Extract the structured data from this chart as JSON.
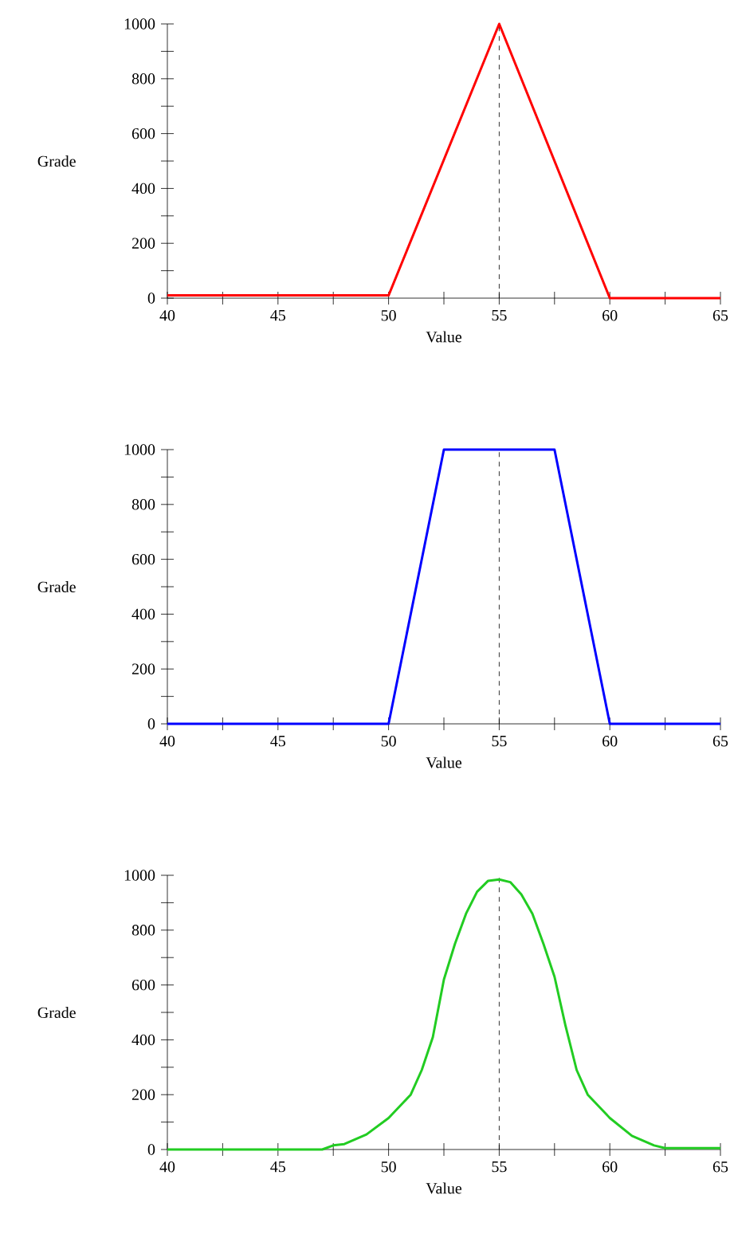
{
  "chart_data": [
    {
      "type": "line",
      "xlabel": "Value",
      "ylabel": "Grade",
      "xlim": [
        40,
        65
      ],
      "ylim": [
        0,
        1000
      ],
      "xticks": [
        40,
        {
          "value": 42.5,
          "label": null
        },
        45,
        {
          "value": 47.5,
          "label": null
        },
        50,
        {
          "value": 52.5,
          "label": null
        },
        55,
        {
          "value": 57.5,
          "label": null
        },
        60,
        {
          "value": 62.5,
          "label": null
        },
        65
      ],
      "yticks": [
        0,
        {
          "value": 100,
          "label": null
        },
        200,
        {
          "value": 300,
          "label": null
        },
        400,
        {
          "value": 500,
          "label": null
        },
        600,
        {
          "value": 700,
          "label": null
        },
        800,
        {
          "value": 900,
          "label": null
        },
        1000
      ],
      "ref_lines": [
        {
          "axis": "x",
          "value": 55,
          "color": "#000000",
          "line_style": "dashed"
        }
      ],
      "series": [
        {
          "color": "#ff0000",
          "x": [
            40,
            50,
            55,
            60,
            65
          ],
          "values": [
            10,
            10,
            1000,
            0,
            0
          ]
        }
      ]
    },
    {
      "type": "line",
      "xlabel": "Value",
      "ylabel": "Grade",
      "xlim": [
        40,
        65
      ],
      "ylim": [
        0,
        1000
      ],
      "xticks": [
        40,
        {
          "value": 42.5,
          "label": null
        },
        45,
        {
          "value": 47.5,
          "label": null
        },
        50,
        {
          "value": 52.5,
          "label": null
        },
        55,
        {
          "value": 57.5,
          "label": null
        },
        60,
        {
          "value": 62.5,
          "label": null
        },
        65
      ],
      "yticks": [
        0,
        {
          "value": 100,
          "label": null
        },
        200,
        {
          "value": 300,
          "label": null
        },
        400,
        {
          "value": 500,
          "label": null
        },
        600,
        {
          "value": 700,
          "label": null
        },
        800,
        {
          "value": 900,
          "label": null
        },
        1000
      ],
      "ref_lines": [
        {
          "axis": "x",
          "value": 55,
          "color": "#000000",
          "line_style": "dashed"
        }
      ],
      "series": [
        {
          "color": "#0000ff",
          "x": [
            40,
            50,
            52.5,
            57.5,
            60,
            65
          ],
          "values": [
            0,
            0,
            1000,
            1000,
            0,
            0
          ]
        }
      ]
    },
    {
      "type": "line",
      "xlabel": "Value",
      "ylabel": "Grade",
      "xlim": [
        40,
        65
      ],
      "ylim": [
        0,
        1000
      ],
      "xticks": [
        40,
        {
          "value": 42.5,
          "label": null
        },
        45,
        {
          "value": 47.5,
          "label": null
        },
        50,
        {
          "value": 52.5,
          "label": null
        },
        55,
        {
          "value": 57.5,
          "label": null
        },
        60,
        {
          "value": 62.5,
          "label": null
        },
        65
      ],
      "yticks": [
        0,
        {
          "value": 100,
          "label": null
        },
        200,
        {
          "value": 300,
          "label": null
        },
        400,
        {
          "value": 500,
          "label": null
        },
        600,
        {
          "value": 700,
          "label": null
        },
        800,
        {
          "value": 900,
          "label": null
        },
        1000
      ],
      "ref_lines": [
        {
          "axis": "x",
          "value": 55,
          "color": "#000000",
          "line_style": "dashed"
        }
      ],
      "series": [
        {
          "color": "#22cc22",
          "x": [
            40,
            47,
            47.5,
            48,
            49,
            50,
            51,
            51.5,
            52,
            52.5,
            53,
            53.5,
            54,
            54.5,
            55,
            55.5,
            56,
            56.5,
            57,
            57.5,
            58,
            58.5,
            59,
            60,
            61,
            62,
            62.5,
            63,
            65
          ],
          "values": [
            0,
            0,
            15,
            20,
            55,
            115,
            200,
            290,
            410,
            620,
            750,
            860,
            940,
            980,
            985,
            975,
            930,
            860,
            750,
            630,
            450,
            290,
            200,
            115,
            50,
            15,
            5,
            5,
            5
          ]
        }
      ]
    }
  ]
}
